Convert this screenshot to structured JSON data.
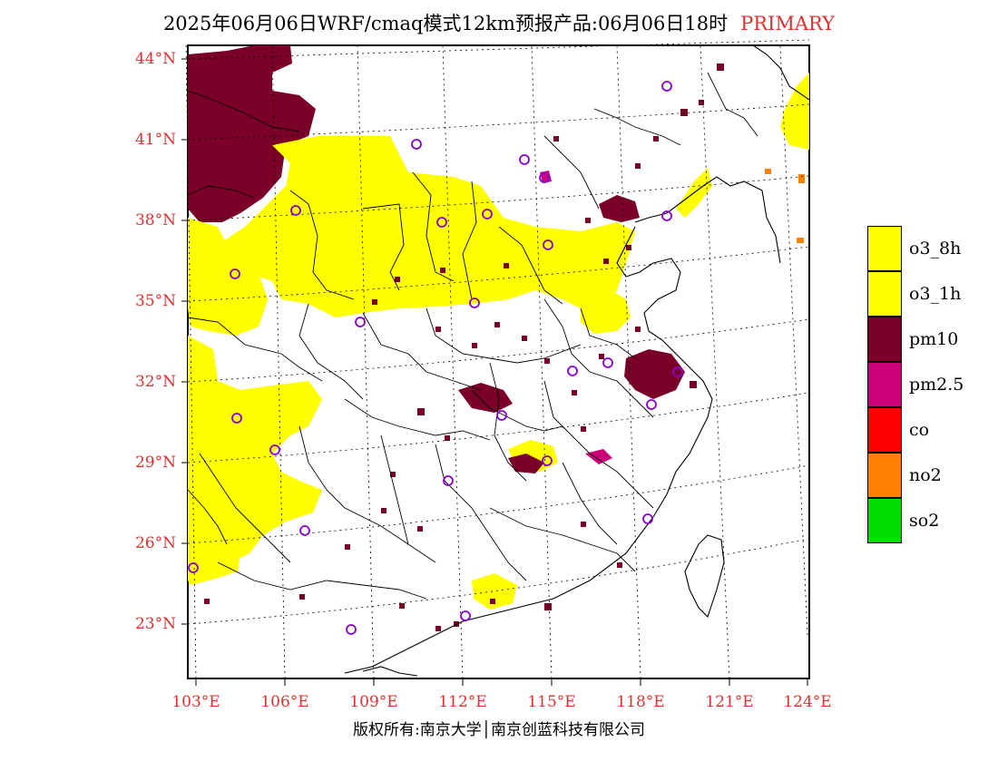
{
  "header": {
    "title": "2025年06月06日WRF/cmaq模式12km预报产品:06月06日18时",
    "tag": "PRIMARY",
    "tag_color": "#e03030"
  },
  "axes": {
    "lat_labels": [
      "44°N",
      "41°N",
      "38°N",
      "35°N",
      "32°N",
      "29°N",
      "26°N",
      "23°N"
    ],
    "lon_labels": [
      "103°E",
      "106°E",
      "109°E",
      "112°E",
      "115°E",
      "118°E",
      "121°E",
      "124°E"
    ]
  },
  "legend": [
    {
      "label": "o3_8h",
      "color": "#ffff00"
    },
    {
      "label": "o3_1h",
      "color": "#ffff00"
    },
    {
      "label": "pm10",
      "color": "#7a0028"
    },
    {
      "label": "pm2.5",
      "color": "#cc0077"
    },
    {
      "label": "co",
      "color": "#ff0000"
    },
    {
      "label": "no2",
      "color": "#ff7f00"
    },
    {
      "label": "so2",
      "color": "#00dd00"
    }
  ],
  "footer": {
    "copyright": "版权所有:南京大学│南京创蓝科技有限公司"
  }
}
